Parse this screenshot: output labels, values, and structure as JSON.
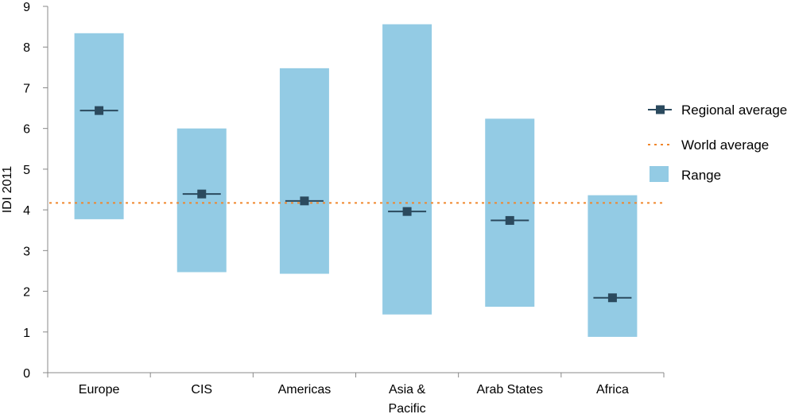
{
  "chart_data": {
    "type": "bar",
    "ylabel": "IDI 2011",
    "xlabel": "",
    "ylim": [
      0,
      9
    ],
    "yticks": [
      0,
      1,
      2,
      3,
      4,
      5,
      6,
      7,
      8,
      9
    ],
    "categories": [
      "Europe",
      "CIS",
      "Americas",
      "Asia & Pacific",
      "Arab States",
      "Africa"
    ],
    "category_label_lines": [
      [
        "Europe"
      ],
      [
        "CIS"
      ],
      [
        "Americas"
      ],
      [
        "Asia &",
        "Pacific"
      ],
      [
        "Arab States"
      ],
      [
        "Africa"
      ]
    ],
    "series": [
      {
        "name": "Range",
        "kind": "floating-bar",
        "min": [
          3.77,
          2.47,
          2.43,
          1.43,
          1.62,
          0.88
        ],
        "max": [
          8.34,
          6.0,
          7.48,
          8.56,
          6.24,
          4.36
        ],
        "color": "#93cbe4"
      },
      {
        "name": "Regional average",
        "kind": "marker",
        "values": [
          6.44,
          4.39,
          4.22,
          3.96,
          3.74,
          1.84
        ],
        "color": "#2b4a5e"
      },
      {
        "name": "World average",
        "kind": "reference-line",
        "value": 4.17,
        "color": "#f0872c"
      }
    ],
    "legend_position": "right",
    "grid": false
  }
}
